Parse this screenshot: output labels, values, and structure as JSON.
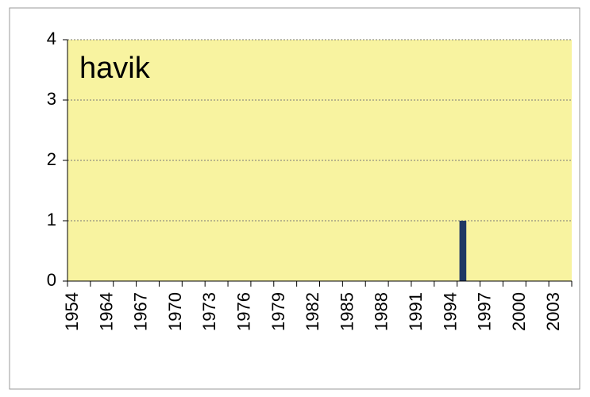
{
  "chart_data": {
    "type": "bar",
    "title": "havik",
    "categories": [
      "1954",
      null,
      null,
      "1964",
      null,
      null,
      "1967",
      null,
      null,
      "1970",
      null,
      null,
      "1973",
      null,
      null,
      "1976",
      null,
      null,
      "1979",
      null,
      null,
      "1982",
      null,
      null,
      "1985",
      null,
      null,
      "1988",
      null,
      null,
      "1991",
      null,
      null,
      "1994",
      null,
      null,
      "1997",
      null,
      null,
      "2000",
      null,
      null,
      "2003",
      null
    ],
    "values": [
      0,
      0,
      0,
      0,
      0,
      0,
      0,
      0,
      0,
      0,
      0,
      0,
      0,
      0,
      0,
      0,
      0,
      0,
      0,
      0,
      0,
      0,
      0,
      0,
      0,
      0,
      0,
      0,
      0,
      0,
      0,
      0,
      0,
      0,
      1,
      0,
      0,
      0,
      0,
      0,
      0,
      0,
      0,
      0
    ],
    "color": "#1f3864",
    "ylim": [
      0,
      4
    ],
    "yticks": [
      0,
      1,
      2,
      3,
      4
    ],
    "grid": true
  }
}
